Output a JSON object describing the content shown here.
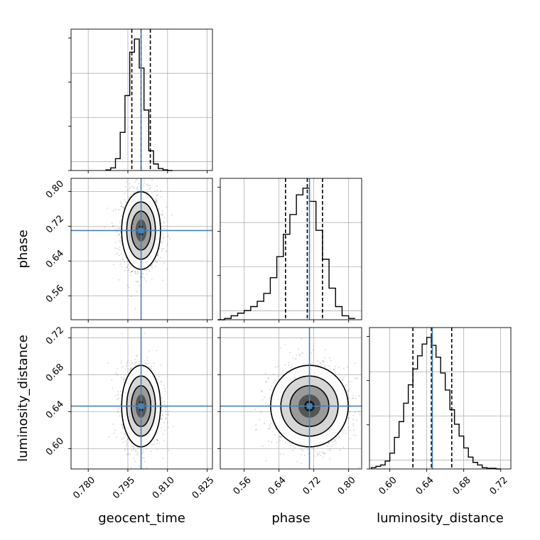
{
  "chart_data": {
    "type": "corner",
    "parameters": [
      "geocent_time",
      "phase",
      "luminosity_distance"
    ],
    "truths": {
      "geocent_time": 0.8,
      "phase": 0.71,
      "luminosity_distance": 0.646
    },
    "quantiles": {
      "geocent_time": [
        0.7965,
        0.8,
        0.8035
      ],
      "phase": [
        0.655,
        0.705,
        0.74
      ],
      "luminosity_distance": [
        0.625,
        0.645,
        0.667
      ]
    },
    "ranges": {
      "geocent_time": [
        0.7735,
        0.827
      ],
      "phase": [
        0.505,
        0.83
      ],
      "luminosity_distance": [
        0.578,
        0.731
      ]
    },
    "ticks": {
      "geocent_time": [
        "0.780",
        "0.795",
        "0.810",
        "0.825"
      ],
      "phase": [
        "0.56",
        "0.64",
        "0.72",
        "0.80"
      ],
      "luminosity_distance": [
        "0.60",
        "0.64",
        "0.68",
        "0.72"
      ]
    },
    "histograms": {
      "geocent_time": {
        "bins": [
          0.7867,
          0.7885,
          0.7903,
          0.7921,
          0.7939,
          0.7957,
          0.7975,
          0.7993,
          0.8011,
          0.8029,
          0.8047,
          0.8065,
          0.8083,
          0.8101,
          0.8119
        ],
        "counts": [
          0.005,
          0.02,
          0.09,
          0.29,
          0.57,
          0.9,
          1.0,
          0.78,
          0.46,
          0.15,
          0.05,
          0.015,
          0.005,
          0.0
        ]
      },
      "phase": {
        "bins": [
          0.5,
          0.515,
          0.53,
          0.545,
          0.56,
          0.575,
          0.59,
          0.605,
          0.62,
          0.635,
          0.65,
          0.665,
          0.68,
          0.695,
          0.71,
          0.725,
          0.74,
          0.755,
          0.77,
          0.785,
          0.8,
          0.815
        ],
        "counts": [
          0.0,
          0.01,
          0.03,
          0.05,
          0.07,
          0.1,
          0.14,
          0.2,
          0.32,
          0.48,
          0.65,
          0.8,
          0.95,
          1.0,
          0.9,
          0.68,
          0.46,
          0.24,
          0.1,
          0.03,
          0.01
        ]
      },
      "luminosity_distance": {
        "bins": [
          0.58,
          0.585,
          0.59,
          0.595,
          0.6,
          0.605,
          0.61,
          0.615,
          0.62,
          0.625,
          0.63,
          0.635,
          0.64,
          0.645,
          0.65,
          0.655,
          0.66,
          0.665,
          0.67,
          0.675,
          0.68,
          0.685,
          0.69,
          0.695,
          0.7,
          0.705,
          0.71,
          0.715,
          0.72
        ],
        "counts": [
          0.01,
          0.02,
          0.03,
          0.06,
          0.12,
          0.24,
          0.36,
          0.5,
          0.64,
          0.76,
          0.86,
          0.95,
          1.0,
          0.94,
          0.85,
          0.73,
          0.6,
          0.45,
          0.34,
          0.25,
          0.16,
          0.09,
          0.05,
          0.03,
          0.01,
          0.005,
          0.005,
          0.0
        ]
      }
    },
    "grid": true
  }
}
